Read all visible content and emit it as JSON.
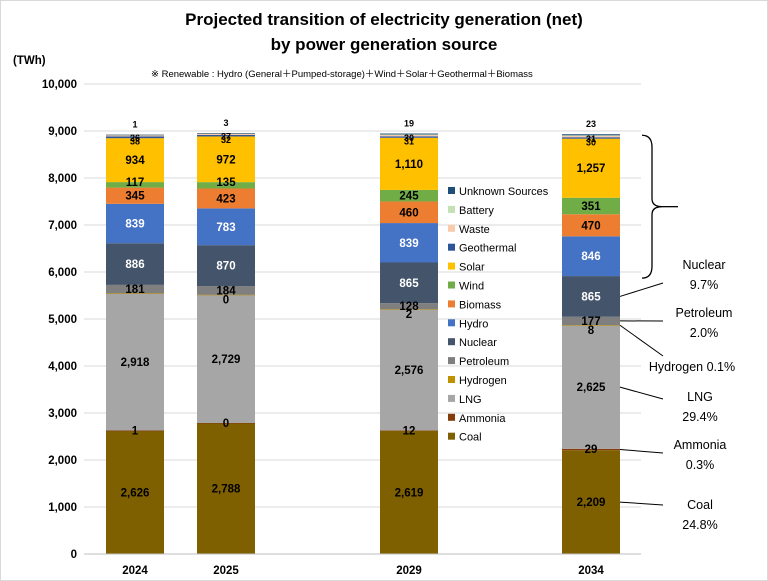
{
  "chart_data": {
    "type": "bar",
    "stacked": true,
    "title_line1": "Projected transition of electricity generation (net)",
    "title_line2": "by power generation source",
    "unit": "(TWh)",
    "note": "※  Renewable : Hydro (General＋Pumped-storage)＋Wind＋Solar＋Geothermal＋Biomass",
    "categories": [
      "2024",
      "2025",
      "2029",
      "2034"
    ],
    "ylim": [
      0,
      10000
    ],
    "yticks": [
      "0",
      "1,000",
      "2,000",
      "3,000",
      "4,000",
      "5,000",
      "6,000",
      "7,000",
      "8,000",
      "9,000",
      "10,000"
    ],
    "grid": true,
    "legend_position": "right",
    "series": [
      {
        "name": "Coal",
        "color": "#7f6000",
        "values": [
          2626,
          2788,
          2619,
          2209
        ],
        "labels": [
          "2,626",
          "2,788",
          "2,619",
          "2,209"
        ]
      },
      {
        "name": "Ammonia",
        "color": "#843c0c",
        "values": [
          1,
          0,
          12,
          29
        ],
        "labels": [
          "1",
          "0",
          "12",
          "29"
        ]
      },
      {
        "name": "LNG",
        "color": "#a6a6a6",
        "values": [
          2918,
          2729,
          2576,
          2625
        ],
        "labels": [
          "2,918",
          "2,729",
          "2,576",
          "2,625"
        ]
      },
      {
        "name": "Hydrogen",
        "color": "#bf9000",
        "values": [
          0,
          0,
          2,
          8
        ],
        "labels": [
          "",
          "0",
          "2",
          "8"
        ]
      },
      {
        "name": "Petroleum",
        "color": "#7f7f7f",
        "values": [
          181,
          184,
          128,
          177
        ],
        "labels": [
          "181",
          "184",
          "128",
          "177"
        ]
      },
      {
        "name": "Nuclear",
        "color": "#44546a",
        "values": [
          886,
          870,
          865,
          865
        ],
        "labels": [
          "886",
          "870",
          "865",
          "865"
        ]
      },
      {
        "name": "Hydro",
        "color": "#4472c4",
        "values": [
          839,
          783,
          839,
          846
        ],
        "labels": [
          "839",
          "783",
          "839",
          "846"
        ]
      },
      {
        "name": "Biomass",
        "color": "#ed7d31",
        "values": [
          345,
          423,
          460,
          470
        ],
        "labels": [
          "345",
          "423",
          "460",
          "470"
        ]
      },
      {
        "name": "Wind",
        "color": "#70ad47",
        "values": [
          117,
          135,
          245,
          351
        ],
        "labels": [
          "117",
          "135",
          "245",
          "351"
        ]
      },
      {
        "name": "Solar",
        "color": "#ffc000",
        "values": [
          934,
          972,
          1110,
          1257
        ],
        "labels": [
          "934",
          "972",
          "1,110",
          "1,257"
        ]
      },
      {
        "name": "Geothermal",
        "color": "#2e5597",
        "values": [
          38,
          32,
          31,
          30
        ],
        "labels": [
          "38",
          "32",
          "31",
          "30"
        ]
      },
      {
        "name": "Waste",
        "color": "#f8cbad",
        "values": [
          26,
          27,
          30,
          31
        ],
        "labels": [
          "26",
          "27",
          "30",
          "31"
        ]
      },
      {
        "name": "Battery",
        "color": "#c5e0b4",
        "values": [
          10,
          10,
          10,
          10
        ],
        "labels": [
          "",
          "",
          "",
          ""
        ]
      },
      {
        "name": "Unknown Sources",
        "color": "#1f4e79",
        "values": [
          1,
          3,
          19,
          23
        ],
        "labels": [
          "1",
          "3",
          "19",
          "23"
        ]
      }
    ],
    "legend_order": [
      "Unknown Sources",
      "Battery",
      "Waste",
      "Geothermal",
      "Solar",
      "Wind",
      "Biomass",
      "Hydro",
      "Nuclear",
      "Petroleum",
      "Hydrogen",
      "LNG",
      "Ammonia",
      "Coal"
    ],
    "annotations": [
      {
        "name": "Nuclear",
        "value": "9.7%"
      },
      {
        "name": "Petroleum",
        "value": "2.0%"
      },
      {
        "name": "Hydrogen",
        "value": "0.1%"
      },
      {
        "name": "LNG",
        "value": "29.4%"
      },
      {
        "name": "Ammonia",
        "value": "0.3%"
      },
      {
        "name": "Coal",
        "value": "24.8%"
      }
    ]
  }
}
